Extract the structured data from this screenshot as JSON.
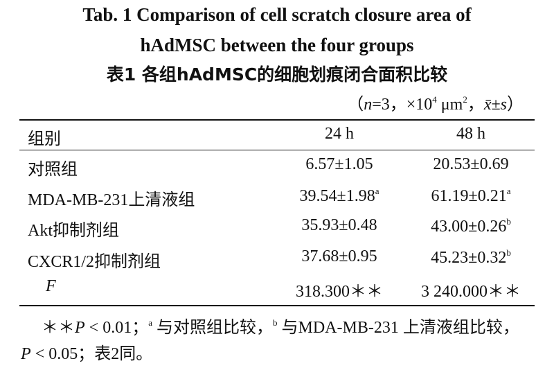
{
  "header": {
    "title_en": [
      "Tab. 1    Comparison of cell scratch closure area of",
      "hAdMSC between the four groups"
    ],
    "title_cn": "表1    各组hAdMSC的细胞划痕闭合面积比较",
    "unit": [
      "（",
      "n",
      "=3，×10",
      "4",
      " μm",
      "2",
      "，",
      "x̄",
      "±",
      "s",
      "）"
    ]
  },
  "table": {
    "columns": [
      "组别",
      "24 h",
      "48 h"
    ],
    "rows": [
      {
        "label": "对照组",
        "cells": [
          {
            "text": "6.57±1.05"
          },
          {
            "text": "20.53±0.69"
          }
        ]
      },
      {
        "label": "MDA-MB-231上清液组",
        "cells": [
          {
            "text": "39.54±1.98",
            "sup": "a"
          },
          {
            "text": "61.19±0.21",
            "sup": "a"
          }
        ]
      },
      {
        "label": "Akt抑制剂组",
        "cells": [
          {
            "text": "35.93±0.48"
          },
          {
            "text": "43.00±0.26",
            "sup": "b"
          }
        ]
      },
      {
        "label": "CXCR1/2抑制剂组",
        "cells": [
          {
            "text": "37.68±0.95"
          },
          {
            "text": "45.23±0.32",
            "sup": "b"
          }
        ]
      },
      {
        "label": "F",
        "cells": [
          {
            "text": "318.300＊＊"
          },
          {
            "text": "3 240.000＊＊"
          }
        ]
      }
    ]
  },
  "footnote": [
    "＊＊",
    "P",
    " < 0.01；",
    "a",
    " 与对照组比较，",
    "b",
    " 与MDA-MB-231 上清液组比较，",
    "P",
    " < 0.05；表2同。"
  ]
}
